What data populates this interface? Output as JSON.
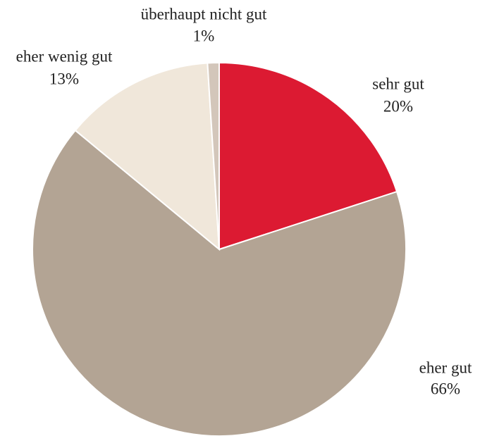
{
  "chart_data": {
    "type": "pie",
    "categories": [
      "sehr gut",
      "eher gut",
      "eher wenig gut",
      "überhaupt nicht gut"
    ],
    "values": [
      20,
      66,
      13,
      1
    ],
    "value_labels": [
      "20%",
      "66%",
      "13%",
      "1%"
    ],
    "colors": [
      "#dc1a32",
      "#b3a494",
      "#f0e7da",
      "#d3c6ba"
    ]
  }
}
